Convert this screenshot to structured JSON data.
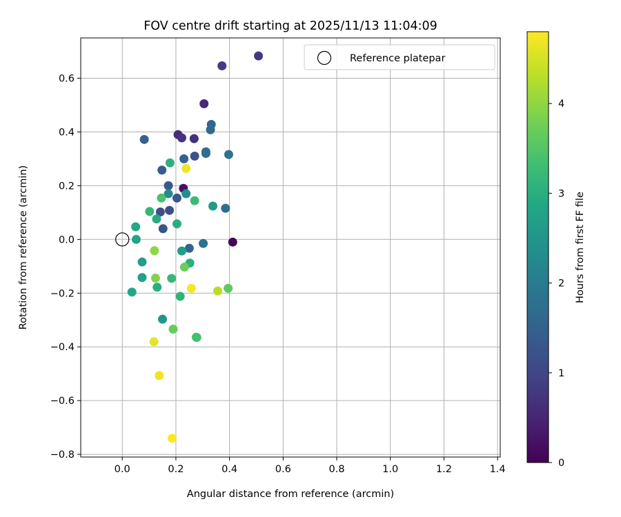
{
  "chart_data": {
    "type": "scatter",
    "title": "FOV centre drift starting at 2025/11/13 11:04:09",
    "xlabel": "Angular distance from reference (arcmin)",
    "ylabel": "Rotation from reference (arcmin)",
    "xlim": [
      -0.155,
      1.41
    ],
    "ylim": [
      -0.81,
      0.75
    ],
    "xticks": [
      0.0,
      0.2,
      0.4,
      0.6,
      0.8,
      1.0,
      1.2,
      1.4
    ],
    "xtick_labels": [
      "0.0",
      "0.2",
      "0.4",
      "0.6",
      "0.8",
      "1.0",
      "1.2",
      "1.4"
    ],
    "yticks": [
      0.6,
      0.4,
      0.2,
      0.0,
      -0.2,
      -0.4,
      -0.6,
      -0.8
    ],
    "ytick_labels": [
      "0.6",
      "0.4",
      "0.2",
      "0.0",
      "−0.2",
      "−0.4",
      "−0.6",
      "−0.8"
    ],
    "grid": true,
    "legend": {
      "position": "top-right",
      "label": "Reference platepar"
    },
    "reference_point": {
      "x": 0.0,
      "y": 0.0,
      "label": "Reference platepar"
    },
    "colorbar": {
      "label": "Hours from first FF file",
      "colormap": "viridis",
      "range": [
        0,
        4.8
      ],
      "ticks": [
        0,
        1,
        2,
        3,
        4
      ],
      "tick_labels": [
        "0",
        "1",
        "2",
        "3",
        "4"
      ]
    },
    "points": [
      {
        "x": 0.412,
        "y": -0.01,
        "hours": 0.05
      },
      {
        "x": 0.228,
        "y": 0.19,
        "hours": 0.2
      },
      {
        "x": 0.305,
        "y": 0.505,
        "hours": 0.55
      },
      {
        "x": 0.208,
        "y": 0.39,
        "hours": 0.6
      },
      {
        "x": 0.268,
        "y": 0.375,
        "hours": 0.65
      },
      {
        "x": 0.222,
        "y": 0.378,
        "hours": 0.7
      },
      {
        "x": 0.508,
        "y": 0.683,
        "hours": 0.8
      },
      {
        "x": 0.372,
        "y": 0.646,
        "hours": 0.85
      },
      {
        "x": 0.176,
        "y": 0.108,
        "hours": 1.1
      },
      {
        "x": 0.142,
        "y": 0.102,
        "hours": 1.15
      },
      {
        "x": 0.27,
        "y": 0.31,
        "hours": 1.2
      },
      {
        "x": 0.152,
        "y": 0.04,
        "hours": 1.25
      },
      {
        "x": 0.204,
        "y": 0.154,
        "hours": 1.3
      },
      {
        "x": 0.172,
        "y": 0.2,
        "hours": 1.35
      },
      {
        "x": 0.148,
        "y": 0.258,
        "hours": 1.4
      },
      {
        "x": 0.23,
        "y": 0.3,
        "hours": 1.45
      },
      {
        "x": 0.082,
        "y": 0.372,
        "hours": 1.5
      },
      {
        "x": 0.25,
        "y": -0.033,
        "hours": 1.55
      },
      {
        "x": 0.312,
        "y": 0.32,
        "hours": 1.6
      },
      {
        "x": 0.332,
        "y": 0.428,
        "hours": 1.6
      },
      {
        "x": 0.329,
        "y": 0.408,
        "hours": 1.65
      },
      {
        "x": 0.312,
        "y": 0.326,
        "hours": 1.7
      },
      {
        "x": 0.385,
        "y": 0.116,
        "hours": 1.75
      },
      {
        "x": 0.302,
        "y": -0.015,
        "hours": 1.8
      },
      {
        "x": 0.397,
        "y": 0.316,
        "hours": 1.85
      },
      {
        "x": 0.172,
        "y": 0.17,
        "hours": 2.3
      },
      {
        "x": 0.238,
        "y": 0.17,
        "hours": 2.35
      },
      {
        "x": 0.15,
        "y": -0.297,
        "hours": 2.5
      },
      {
        "x": 0.338,
        "y": 0.124,
        "hours": 2.6
      },
      {
        "x": 0.222,
        "y": -0.043,
        "hours": 2.65
      },
      {
        "x": 0.074,
        "y": -0.084,
        "hours": 2.7
      },
      {
        "x": 0.074,
        "y": -0.142,
        "hours": 2.75
      },
      {
        "x": 0.052,
        "y": 0.0,
        "hours": 2.8
      },
      {
        "x": 0.036,
        "y": -0.196,
        "hours": 2.85
      },
      {
        "x": 0.05,
        "y": 0.047,
        "hours": 2.9
      },
      {
        "x": 0.128,
        "y": 0.076,
        "hours": 2.95
      },
      {
        "x": 0.13,
        "y": -0.178,
        "hours": 3.0
      },
      {
        "x": 0.204,
        "y": 0.058,
        "hours": 3.0
      },
      {
        "x": 0.178,
        "y": 0.285,
        "hours": 3.05
      },
      {
        "x": 0.252,
        "y": -0.088,
        "hours": 3.05
      },
      {
        "x": 0.216,
        "y": -0.212,
        "hours": 3.1
      },
      {
        "x": 0.102,
        "y": 0.104,
        "hours": 3.15
      },
      {
        "x": 0.184,
        "y": -0.145,
        "hours": 3.2
      },
      {
        "x": 0.27,
        "y": 0.144,
        "hours": 3.25
      },
      {
        "x": 0.276,
        "y": -0.364,
        "hours": 3.3
      },
      {
        "x": 0.278,
        "y": -0.365,
        "hours": 3.35
      },
      {
        "x": 0.146,
        "y": 0.154,
        "hours": 3.4
      },
      {
        "x": 0.395,
        "y": -0.182,
        "hours": 3.6
      },
      {
        "x": 0.19,
        "y": -0.334,
        "hours": 3.65
      },
      {
        "x": 0.232,
        "y": -0.103,
        "hours": 3.7
      },
      {
        "x": 0.124,
        "y": -0.144,
        "hours": 3.9
      },
      {
        "x": 0.12,
        "y": -0.042,
        "hours": 4.0
      },
      {
        "x": 0.356,
        "y": -0.192,
        "hours": 4.3
      },
      {
        "x": 0.118,
        "y": -0.381,
        "hours": 4.6
      },
      {
        "x": 0.138,
        "y": -0.507,
        "hours": 4.7
      },
      {
        "x": 0.238,
        "y": 0.264,
        "hours": 4.7
      },
      {
        "x": 0.258,
        "y": -0.182,
        "hours": 4.75
      },
      {
        "x": 0.186,
        "y": -0.74,
        "hours": 4.8
      }
    ]
  }
}
